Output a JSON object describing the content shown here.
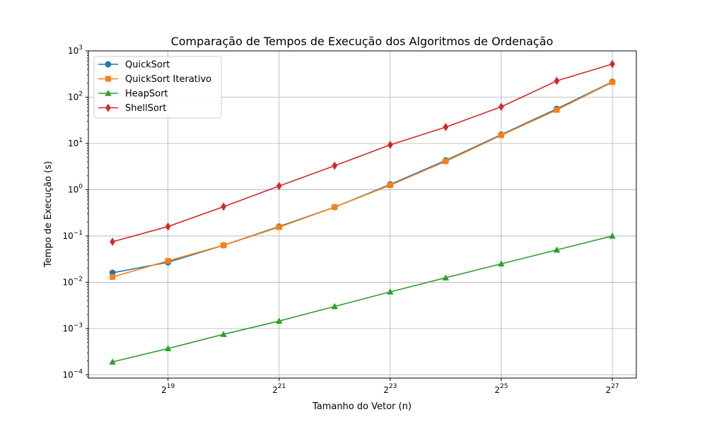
{
  "chart_data": {
    "type": "line",
    "title": "Comparação de Tempos de Execução dos Algoritmos de Ordenação",
    "xlabel": "Tamanho do Vetor (n)",
    "ylabel": "Tempo de Execução (s)",
    "x": [
      262144,
      524288,
      1048576,
      2097152,
      4194304,
      8388608,
      16777216,
      33554432,
      67108864,
      134217728
    ],
    "x_scale": "log2",
    "y_scale": "log10",
    "xlim": [
      194000,
      181000000
    ],
    "ylim": [
      8.5e-05,
      1000
    ],
    "x_ticks": [
      {
        "value": 524288,
        "base": "2",
        "exp": "19"
      },
      {
        "value": 2097152,
        "base": "2",
        "exp": "21"
      },
      {
        "value": 8388608,
        "base": "2",
        "exp": "23"
      },
      {
        "value": 33554432,
        "base": "2",
        "exp": "25"
      },
      {
        "value": 134217728,
        "base": "2",
        "exp": "27"
      }
    ],
    "y_ticks": [
      {
        "value": 0.0001,
        "base": "10",
        "exp": "−4"
      },
      {
        "value": 0.001,
        "base": "10",
        "exp": "−3"
      },
      {
        "value": 0.01,
        "base": "10",
        "exp": "−2"
      },
      {
        "value": 0.1,
        "base": "10",
        "exp": "−1"
      },
      {
        "value": 1,
        "base": "10",
        "exp": "0"
      },
      {
        "value": 10,
        "base": "10",
        "exp": "1"
      },
      {
        "value": 100,
        "base": "10",
        "exp": "2"
      },
      {
        "value": 1000,
        "base": "10",
        "exp": "3"
      }
    ],
    "grid": true,
    "legend_position": "top-left",
    "series": [
      {
        "name": "QuickSort",
        "color": "#1f77b4",
        "marker": "circle",
        "values": [
          0.016,
          0.027,
          0.063,
          0.16,
          0.42,
          1.3,
          4.3,
          15.5,
          56,
          215
        ]
      },
      {
        "name": "QuickSort Iterativo",
        "color": "#ff7f0e",
        "marker": "square",
        "values": [
          0.013,
          0.029,
          0.063,
          0.155,
          0.42,
          1.25,
          4.1,
          15,
          53,
          210
        ]
      },
      {
        "name": "HeapSort",
        "color": "#2ca02c",
        "marker": "triangle",
        "values": [
          0.00019,
          0.00037,
          0.00075,
          0.00145,
          0.003,
          0.0062,
          0.0125,
          0.025,
          0.05,
          0.1
        ]
      },
      {
        "name": "ShellSort",
        "color": "#d62728",
        "marker": "diamond",
        "values": [
          0.075,
          0.16,
          0.43,
          1.2,
          3.3,
          9.3,
          22.5,
          62,
          225,
          520
        ]
      }
    ]
  }
}
